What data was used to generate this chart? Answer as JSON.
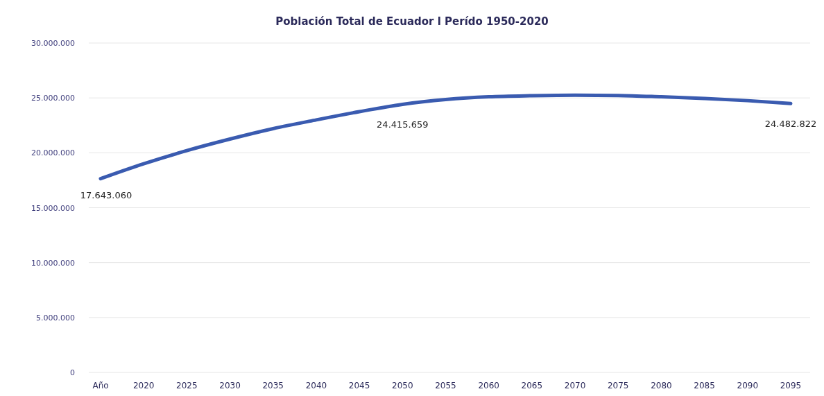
{
  "chart_data": {
    "type": "line",
    "title": "Población Total de Ecuador l Perído 1950-2020",
    "categories": [
      "Año",
      "2020",
      "2025",
      "2030",
      "2035",
      "2040",
      "2045",
      "2050",
      "2055",
      "2060",
      "2065",
      "2070",
      "2075",
      "2080",
      "2085",
      "2090",
      "2095"
    ],
    "series": [
      {
        "color": "#3a5bb0",
        "values": [
          17643060,
          19000000,
          20200000,
          21250000,
          22200000,
          23000000,
          23750000,
          24415659,
          24850000,
          25100000,
          25200000,
          25250000,
          25220000,
          25100000,
          24950000,
          24750000,
          24482822
        ],
        "value_labels": [
          "17.643.060",
          null,
          null,
          null,
          null,
          null,
          null,
          "24.415.659",
          null,
          null,
          null,
          null,
          null,
          null,
          null,
          null,
          "24.482.822"
        ]
      }
    ],
    "ylim": [
      0,
      30000000
    ],
    "yticks": [
      {
        "value": 0,
        "label": "0"
      },
      {
        "value": 5000000,
        "label": "5.000.000"
      },
      {
        "value": 10000000,
        "label": "10.000.000"
      },
      {
        "value": 15000000,
        "label": "15.000.000"
      },
      {
        "value": 20000000,
        "label": "20.000.000"
      },
      {
        "value": 25000000,
        "label": "25.000.000"
      },
      {
        "value": 30000000,
        "label": "30.000.000"
      }
    ],
    "grid": "y",
    "marker": "none",
    "line_style": "solid"
  }
}
